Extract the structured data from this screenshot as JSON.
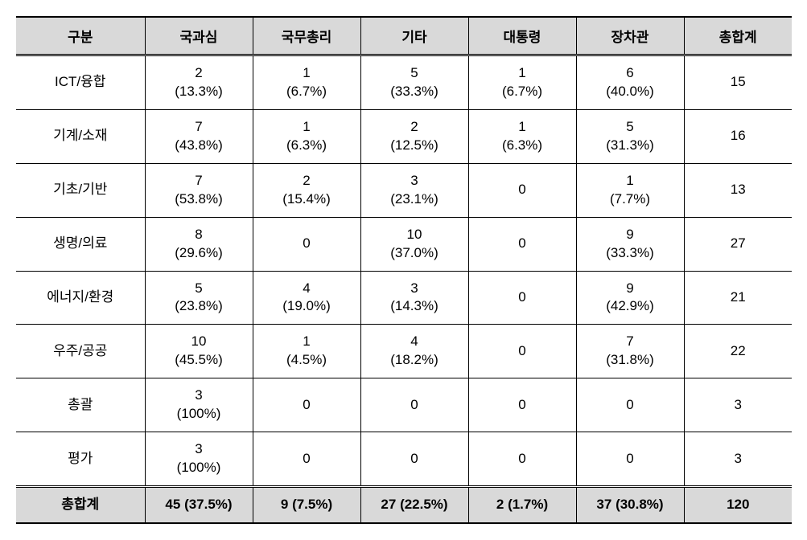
{
  "table": {
    "columns": [
      "구분",
      "국과심",
      "국무총리",
      "기타",
      "대통령",
      "장차관",
      "총합계"
    ],
    "header_bg": "#d9d9d9",
    "footer_bg": "#d9d9d9",
    "border_color": "#000000",
    "font_size_pt": 13,
    "rows": [
      {
        "label": "ICT/융합",
        "cells": [
          {
            "num": "2",
            "pct": "(13.3%)"
          },
          {
            "num": "1",
            "pct": "(6.7%)"
          },
          {
            "num": "5",
            "pct": "(33.3%)"
          },
          {
            "num": "1",
            "pct": "(6.7%)"
          },
          {
            "num": "6",
            "pct": "(40.0%)"
          }
        ],
        "total": "15"
      },
      {
        "label": "기계/소재",
        "cells": [
          {
            "num": "7",
            "pct": "(43.8%)"
          },
          {
            "num": "1",
            "pct": "(6.3%)"
          },
          {
            "num": "2",
            "pct": "(12.5%)"
          },
          {
            "num": "1",
            "pct": "(6.3%)"
          },
          {
            "num": "5",
            "pct": "(31.3%)"
          }
        ],
        "total": "16"
      },
      {
        "label": "기초/기반",
        "cells": [
          {
            "num": "7",
            "pct": "(53.8%)"
          },
          {
            "num": "2",
            "pct": "(15.4%)"
          },
          {
            "num": "3",
            "pct": "(23.1%)"
          },
          {
            "num": "0",
            "pct": ""
          },
          {
            "num": "1",
            "pct": "(7.7%)"
          }
        ],
        "total": "13"
      },
      {
        "label": "생명/의료",
        "cells": [
          {
            "num": "8",
            "pct": "(29.6%)"
          },
          {
            "num": "0",
            "pct": ""
          },
          {
            "num": "10",
            "pct": "(37.0%)"
          },
          {
            "num": "0",
            "pct": ""
          },
          {
            "num": "9",
            "pct": "(33.3%)"
          }
        ],
        "total": "27"
      },
      {
        "label": "에너지/환경",
        "cells": [
          {
            "num": "5",
            "pct": "(23.8%)"
          },
          {
            "num": "4",
            "pct": "(19.0%)"
          },
          {
            "num": "3",
            "pct": "(14.3%)"
          },
          {
            "num": "0",
            "pct": ""
          },
          {
            "num": "9",
            "pct": "(42.9%)"
          }
        ],
        "total": "21"
      },
      {
        "label": "우주/공공",
        "cells": [
          {
            "num": "10",
            "pct": "(45.5%)"
          },
          {
            "num": "1",
            "pct": "(4.5%)"
          },
          {
            "num": "4",
            "pct": "(18.2%)"
          },
          {
            "num": "0",
            "pct": ""
          },
          {
            "num": "7",
            "pct": "(31.8%)"
          }
        ],
        "total": "22"
      },
      {
        "label": "총괄",
        "cells": [
          {
            "num": "3",
            "pct": "(100%)"
          },
          {
            "num": "0",
            "pct": ""
          },
          {
            "num": "0",
            "pct": ""
          },
          {
            "num": "0",
            "pct": ""
          },
          {
            "num": "0",
            "pct": ""
          }
        ],
        "total": "3"
      },
      {
        "label": "평가",
        "cells": [
          {
            "num": "3",
            "pct": "(100%)"
          },
          {
            "num": "0",
            "pct": ""
          },
          {
            "num": "0",
            "pct": ""
          },
          {
            "num": "0",
            "pct": ""
          },
          {
            "num": "0",
            "pct": ""
          }
        ],
        "total": "3"
      }
    ],
    "footer": {
      "label": "총합계",
      "cells": [
        {
          "num": "45",
          "pct": "(37.5%)"
        },
        {
          "num": "9",
          "pct": "(7.5%)"
        },
        {
          "num": "27",
          "pct": "(22.5%)"
        },
        {
          "num": "2",
          "pct": "(1.7%)"
        },
        {
          "num": "37",
          "pct": "(30.8%)"
        }
      ],
      "total": "120"
    }
  }
}
